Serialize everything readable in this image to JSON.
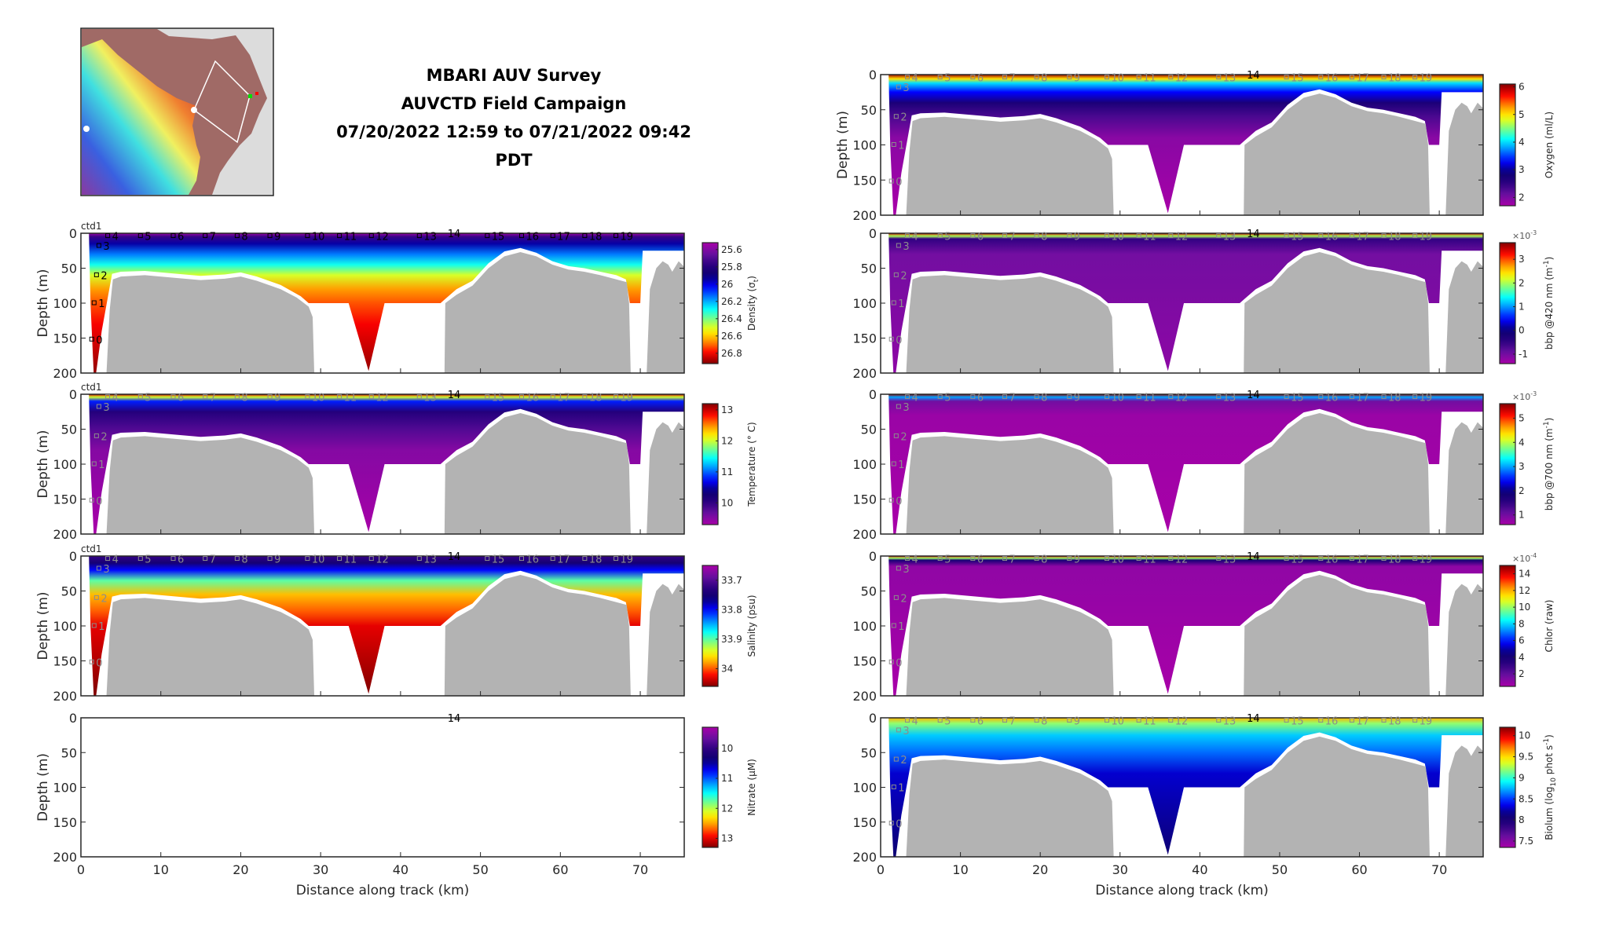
{
  "title": {
    "line1": "MBARI AUV Survey",
    "line2": "AUVCTD Field Campaign",
    "line3": "07/20/2022 12:59 to 07/21/2022 09:42 PDT"
  },
  "colors": {
    "bathymetry": "#b3b3b3",
    "axis": "#262626",
    "station_dark": "#000000",
    "station_light": "#8c8c8c"
  },
  "colormap": [
    "#a800a8",
    "#6a10a0",
    "#2c0080",
    "#0a0070",
    "#0000ff",
    "#0080ff",
    "#00ffff",
    "#80ff80",
    "#ffff00",
    "#ff9000",
    "#ff0000",
    "#800000"
  ],
  "axes": {
    "xlim": [
      0,
      75.5
    ],
    "ylim": [
      0,
      200
    ],
    "xticks": [
      "0",
      "10",
      "20",
      "30",
      "40",
      "50",
      "60",
      "70"
    ],
    "yticks": [
      "0",
      "50",
      "100",
      "150",
      "200"
    ],
    "xlabel": "Distance along track (km)",
    "ylabel": "Depth (m)",
    "header": "ctd1"
  },
  "stations": [
    {
      "label": "4",
      "km": 3.4,
      "depth": 4
    },
    {
      "label": "5",
      "km": 7.5,
      "depth": 4
    },
    {
      "label": "6",
      "km": 11.6,
      "depth": 4
    },
    {
      "label": "7",
      "km": 15.6,
      "depth": 4
    },
    {
      "label": "8",
      "km": 19.6,
      "depth": 4
    },
    {
      "label": "9",
      "km": 23.7,
      "depth": 4
    },
    {
      "label": "10",
      "km": 28.4,
      "depth": 4
    },
    {
      "label": "11",
      "km": 32.4,
      "depth": 4
    },
    {
      "label": "12",
      "km": 36.4,
      "depth": 4
    },
    {
      "label": "13",
      "km": 42.4,
      "depth": 4
    },
    {
      "label": "15",
      "km": 50.9,
      "depth": 4
    },
    {
      "label": "16",
      "km": 55.2,
      "depth": 4
    },
    {
      "label": "17",
      "km": 59.1,
      "depth": 4
    },
    {
      "label": "18",
      "km": 63.1,
      "depth": 4
    },
    {
      "label": "19",
      "km": 67.0,
      "depth": 4
    },
    {
      "label": "3",
      "km": 2.3,
      "depth": 18
    },
    {
      "label": "2",
      "km": 2.0,
      "depth": 60
    },
    {
      "label": "1",
      "km": 1.7,
      "depth": 100
    },
    {
      "label": "0",
      "km": 1.4,
      "depth": 152
    }
  ],
  "top_station": {
    "label": "14",
    "km": 46.7
  },
  "bathymetry": [
    [
      [
        3.2,
        200
      ],
      [
        3.6,
        110
      ],
      [
        4.0,
        66
      ],
      [
        5,
        62
      ],
      [
        8,
        60
      ],
      [
        12,
        64
      ],
      [
        15,
        67
      ],
      [
        18,
        65
      ],
      [
        20,
        62
      ],
      [
        22,
        68
      ],
      [
        25,
        80
      ],
      [
        27,
        92
      ],
      [
        28.5,
        105
      ],
      [
        29,
        120
      ],
      [
        29.2,
        200
      ]
    ],
    [
      [
        45.5,
        200
      ],
      [
        45.6,
        100
      ],
      [
        47,
        88
      ],
      [
        49,
        75
      ],
      [
        51,
        50
      ],
      [
        53,
        33
      ],
      [
        55,
        27
      ],
      [
        57,
        33
      ],
      [
        59,
        45
      ],
      [
        61,
        52
      ],
      [
        63,
        55
      ],
      [
        65,
        60
      ],
      [
        67,
        66
      ],
      [
        68.3,
        70
      ],
      [
        68.6,
        100
      ],
      [
        68.8,
        200
      ]
    ],
    [
      [
        70.8,
        200
      ],
      [
        71.2,
        80
      ],
      [
        72,
        50
      ],
      [
        72.8,
        40
      ],
      [
        73.5,
        45
      ],
      [
        74,
        55
      ],
      [
        74.8,
        40
      ],
      [
        75.5,
        48
      ],
      [
        75.5,
        200
      ]
    ]
  ],
  "coverage": [
    [
      1.0,
      0
    ],
    [
      75.5,
      0
    ],
    [
      75.5,
      25
    ],
    [
      70.3,
      25
    ],
    [
      70,
      100
    ],
    [
      68.7,
      100
    ],
    [
      68.2,
      66
    ],
    [
      67,
      60
    ],
    [
      65,
      55
    ],
    [
      63,
      50
    ],
    [
      61,
      47
    ],
    [
      59,
      40
    ],
    [
      57,
      28
    ],
    [
      55,
      21
    ],
    [
      53,
      26
    ],
    [
      51,
      43
    ],
    [
      49,
      68
    ],
    [
      47,
      80
    ],
    [
      45.5,
      95
    ],
    [
      45,
      100
    ],
    [
      38,
      100
    ],
    [
      36,
      197
    ],
    [
      33.5,
      100
    ],
    [
      28.5,
      100
    ],
    [
      27.5,
      90
    ],
    [
      25,
      74
    ],
    [
      22,
      62
    ],
    [
      20,
      56
    ],
    [
      18,
      59
    ],
    [
      15,
      61
    ],
    [
      12,
      58
    ],
    [
      8,
      54
    ],
    [
      5,
      55
    ],
    [
      3.9,
      58
    ],
    [
      2.6,
      140
    ],
    [
      1.9,
      200
    ],
    [
      1.6,
      200
    ],
    [
      1.2,
      100
    ]
  ],
  "chart_data": [
    {
      "id": "oxygen",
      "type": "area",
      "column": "right",
      "row": 0,
      "header": false,
      "ylabel": true,
      "xticklabels": false,
      "has_data": true,
      "station_style": "light",
      "colorbar": {
        "label": [
          {
            "t": "Oxygen (ml/L)"
          }
        ],
        "range": [
          1.7,
          6.1
        ],
        "ticks": [
          2,
          3,
          4,
          5,
          6
        ],
        "reversed": false,
        "multiplier": ""
      },
      "profile": [
        [
          0,
          6
        ],
        [
          6,
          5
        ],
        [
          12,
          4
        ],
        [
          25,
          3.3
        ],
        [
          40,
          2.7
        ],
        [
          60,
          2.3
        ],
        [
          90,
          1.9
        ],
        [
          200,
          1.7
        ]
      ]
    },
    {
      "id": "density",
      "type": "area",
      "column": "left",
      "row": 1,
      "header": true,
      "ylabel": true,
      "xticklabels": false,
      "has_data": true,
      "station_style": "dark",
      "colorbar": {
        "label": [
          {
            "t": "Density (σ"
          },
          {
            "t": "t",
            "s": "sub"
          },
          {
            "t": ")"
          }
        ],
        "range": [
          25.52,
          26.92
        ],
        "ticks": [
          25.6,
          25.8,
          26,
          26.2,
          26.4,
          26.6,
          26.8
        ],
        "reversed": true,
        "multiplier": ""
      },
      "profile": [
        [
          0,
          25.55
        ],
        [
          5,
          25.75
        ],
        [
          15,
          25.95
        ],
        [
          30,
          26.15
        ],
        [
          45,
          26.3
        ],
        [
          60,
          26.5
        ],
        [
          80,
          26.65
        ],
        [
          100,
          26.72
        ],
        [
          130,
          26.8
        ],
        [
          200,
          26.9
        ]
      ]
    },
    {
      "id": "bbp420",
      "type": "area",
      "column": "right",
      "row": 1,
      "header": false,
      "ylabel": false,
      "xticklabels": false,
      "has_data": true,
      "station_style": "light",
      "colorbar": {
        "label": [
          {
            "t": "bbp @420 nm (m"
          },
          {
            "t": "-1",
            "s": "sup"
          },
          {
            "t": ")"
          }
        ],
        "range": [
          -1.4,
          3.7
        ],
        "ticks": [
          -1,
          0,
          1,
          2,
          3
        ],
        "reversed": false,
        "multiplier": "×10",
        "mult_exp": "-3"
      },
      "profile": [
        [
          0,
          3.5
        ],
        [
          4,
          2
        ],
        [
          8,
          -0.5
        ],
        [
          30,
          -1.0
        ],
        [
          200,
          -1.2
        ]
      ]
    },
    {
      "id": "temperature",
      "type": "area",
      "column": "left",
      "row": 2,
      "header": true,
      "ylabel": true,
      "xticklabels": false,
      "has_data": true,
      "station_style": "light",
      "colorbar": {
        "label": [
          {
            "t": "Temperature (° C)"
          }
        ],
        "range": [
          9.3,
          13.2
        ],
        "ticks": [
          10,
          11,
          12,
          13
        ],
        "reversed": false,
        "multiplier": ""
      },
      "profile": [
        [
          0,
          13
        ],
        [
          4,
          12
        ],
        [
          10,
          10.8
        ],
        [
          25,
          10.1
        ],
        [
          50,
          9.8
        ],
        [
          80,
          9.5
        ],
        [
          200,
          9.3
        ]
      ]
    },
    {
      "id": "bbp700",
      "type": "area",
      "column": "right",
      "row": 2,
      "header": false,
      "ylabel": false,
      "xticklabels": false,
      "has_data": true,
      "station_style": "light",
      "colorbar": {
        "label": [
          {
            "t": "bbp @700 nm (m"
          },
          {
            "t": "-1",
            "s": "sup"
          },
          {
            "t": ")"
          }
        ],
        "range": [
          0.6,
          5.6
        ],
        "ticks": [
          1,
          2,
          3,
          4,
          5
        ],
        "reversed": false,
        "multiplier": "×10",
        "mult_exp": "-3"
      },
      "profile": [
        [
          0,
          5.5
        ],
        [
          4,
          3
        ],
        [
          10,
          1
        ],
        [
          30,
          0.7
        ],
        [
          200,
          0.6
        ]
      ]
    },
    {
      "id": "salinity",
      "type": "area",
      "column": "left",
      "row": 3,
      "header": true,
      "ylabel": true,
      "xticklabels": false,
      "has_data": true,
      "station_style": "light",
      "colorbar": {
        "label": [
          {
            "t": "Salinity (psu)"
          }
        ],
        "range": [
          33.65,
          34.06
        ],
        "ticks": [
          33.7,
          33.8,
          33.9,
          34
        ],
        "reversed": true,
        "multiplier": ""
      },
      "profile": [
        [
          0,
          33.72
        ],
        [
          10,
          33.75
        ],
        [
          20,
          33.8
        ],
        [
          35,
          33.9
        ],
        [
          55,
          33.97
        ],
        [
          80,
          34.0
        ],
        [
          100,
          34.03
        ],
        [
          200,
          34.06
        ]
      ]
    },
    {
      "id": "chlor",
      "type": "area",
      "column": "right",
      "row": 3,
      "header": false,
      "ylabel": false,
      "xticklabels": false,
      "has_data": true,
      "station_style": "light",
      "colorbar": {
        "label": [
          {
            "t": "Chlor (raw)"
          }
        ],
        "range": [
          0.5,
          15
        ],
        "ticks": [
          2,
          4,
          6,
          8,
          10,
          12,
          14
        ],
        "reversed": false,
        "multiplier": "×10",
        "mult_exp": "-4"
      },
      "profile": [
        [
          0,
          14
        ],
        [
          3,
          10
        ],
        [
          6,
          4
        ],
        [
          15,
          1
        ],
        [
          200,
          0.5
        ]
      ]
    },
    {
      "id": "nitrate",
      "type": "area",
      "column": "left",
      "row": 4,
      "header": false,
      "ylabel": true,
      "xticklabels": true,
      "has_data": false,
      "station_style": "none",
      "colorbar": {
        "label": [
          {
            "t": "Nitrate (μM)"
          }
        ],
        "range": [
          9.3,
          13.3
        ],
        "ticks": [
          10,
          11,
          12,
          13
        ],
        "reversed": true,
        "multiplier": ""
      },
      "profile": []
    },
    {
      "id": "biolum",
      "type": "area",
      "column": "right",
      "row": 4,
      "header": false,
      "ylabel": false,
      "xticklabels": true,
      "has_data": true,
      "station_style": "light",
      "colorbar": {
        "label": [
          {
            "t": "Biolum (log"
          },
          {
            "t": "10",
            "s": "sub"
          },
          {
            "t": " phot s"
          },
          {
            "t": "-1",
            "s": "sup"
          },
          {
            "t": ")"
          }
        ],
        "range": [
          7.35,
          10.2
        ],
        "ticks": [
          7.5,
          8,
          8.5,
          9,
          9.5,
          10
        ],
        "reversed": false,
        "multiplier": ""
      },
      "profile": [
        [
          0,
          9.6
        ],
        [
          8,
          9.2
        ],
        [
          25,
          8.8
        ],
        [
          50,
          8.6
        ],
        [
          80,
          8.3
        ],
        [
          200,
          8.1
        ]
      ]
    }
  ]
}
